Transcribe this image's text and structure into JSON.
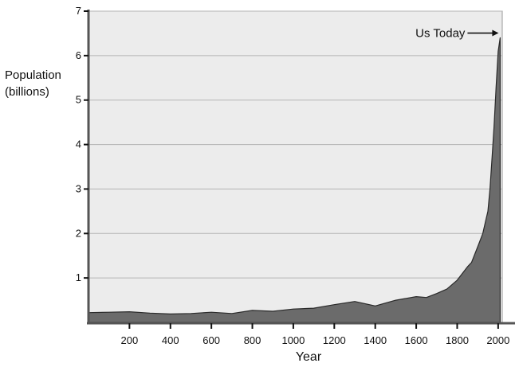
{
  "chart_data": {
    "type": "area",
    "title": "",
    "xlabel": "Year",
    "ylabel_lines": [
      "Population",
      "(billions)"
    ],
    "xlim": [
      0,
      2020
    ],
    "ylim": [
      0,
      7
    ],
    "x_ticks": [
      200,
      400,
      600,
      800,
      1000,
      1200,
      1400,
      1600,
      1800,
      2000
    ],
    "x_tick_labels": [
      "200",
      "400",
      "600",
      "800",
      "1000",
      "1200",
      "1400",
      "1600",
      "1800",
      "2000"
    ],
    "y_ticks": [
      1,
      2,
      3,
      4,
      5,
      6,
      7
    ],
    "y_tick_labels": [
      "1",
      "2",
      "3",
      "4",
      "5",
      "6",
      "7"
    ],
    "grid": true,
    "background_color": "#ececec",
    "fill_color": "#6b6b6b",
    "x": [
      0,
      100,
      200,
      300,
      400,
      500,
      600,
      700,
      800,
      900,
      1000,
      1100,
      1200,
      1300,
      1400,
      1500,
      1600,
      1650,
      1700,
      1750,
      1800,
      1850,
      1870,
      1900,
      1925,
      1940,
      1950,
      1960,
      1970,
      1980,
      1990,
      2000,
      2010
    ],
    "y": [
      0.22,
      0.23,
      0.24,
      0.21,
      0.19,
      0.2,
      0.23,
      0.2,
      0.27,
      0.25,
      0.3,
      0.32,
      0.4,
      0.47,
      0.37,
      0.5,
      0.58,
      0.56,
      0.65,
      0.75,
      0.95,
      1.25,
      1.35,
      1.7,
      2.0,
      2.3,
      2.5,
      3.0,
      3.7,
      4.4,
      5.3,
      6.1,
      6.4
    ],
    "annotations": [
      {
        "text": "Us Today",
        "x": 2010,
        "y": 6.4
      }
    ]
  }
}
